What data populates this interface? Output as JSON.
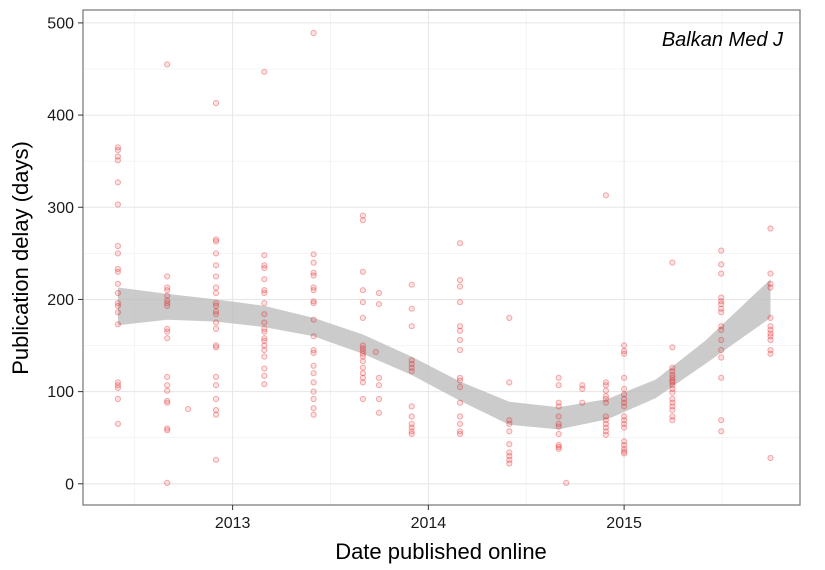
{
  "chart_data": {
    "type": "scatter",
    "title": "",
    "panel_label": "Balkan Med J",
    "xlabel": "Date published online",
    "ylabel": "Publication delay (days)",
    "xlim": [
      "2012-03-28",
      "2015-11-25"
    ],
    "ylim": [
      -23,
      514
    ],
    "x_ticks": [
      {
        "date": "2013-01-01",
        "label": "2013"
      },
      {
        "date": "2014-01-01",
        "label": "2014"
      },
      {
        "date": "2015-01-01",
        "label": "2015"
      }
    ],
    "y_ticks": [
      {
        "value": 0,
        "label": "0"
      },
      {
        "value": 100,
        "label": "100"
      },
      {
        "value": 200,
        "label": "200"
      },
      {
        "value": 300,
        "label": "300"
      },
      {
        "value": 400,
        "label": "400"
      },
      {
        "value": 500,
        "label": "500"
      }
    ],
    "grid": true,
    "point_color": "#E41A1C",
    "band_color": "#BEBEBE",
    "points": [
      {
        "x": "2012-06-01",
        "y": 365
      },
      {
        "x": "2012-06-01",
        "y": 362
      },
      {
        "x": "2012-06-01",
        "y": 355
      },
      {
        "x": "2012-06-01",
        "y": 351
      },
      {
        "x": "2012-06-01",
        "y": 327
      },
      {
        "x": "2012-06-01",
        "y": 303
      },
      {
        "x": "2012-06-01",
        "y": 258
      },
      {
        "x": "2012-06-01",
        "y": 250
      },
      {
        "x": "2012-06-01",
        "y": 233
      },
      {
        "x": "2012-06-01",
        "y": 230
      },
      {
        "x": "2012-06-01",
        "y": 217
      },
      {
        "x": "2012-06-01",
        "y": 207
      },
      {
        "x": "2012-06-01",
        "y": 196
      },
      {
        "x": "2012-06-01",
        "y": 193
      },
      {
        "x": "2012-06-01",
        "y": 186
      },
      {
        "x": "2012-06-01",
        "y": 173
      },
      {
        "x": "2012-06-01",
        "y": 110
      },
      {
        "x": "2012-06-01",
        "y": 107
      },
      {
        "x": "2012-06-01",
        "y": 104
      },
      {
        "x": "2012-06-01",
        "y": 92
      },
      {
        "x": "2012-06-01",
        "y": 65
      },
      {
        "x": "2012-09-01",
        "y": 455
      },
      {
        "x": "2012-09-01",
        "y": 225
      },
      {
        "x": "2012-09-01",
        "y": 213
      },
      {
        "x": "2012-09-01",
        "y": 210
      },
      {
        "x": "2012-09-01",
        "y": 204
      },
      {
        "x": "2012-09-01",
        "y": 199
      },
      {
        "x": "2012-09-01",
        "y": 196
      },
      {
        "x": "2012-09-01",
        "y": 193
      },
      {
        "x": "2012-09-01",
        "y": 168
      },
      {
        "x": "2012-09-01",
        "y": 165
      },
      {
        "x": "2012-09-01",
        "y": 158
      },
      {
        "x": "2012-09-01",
        "y": 116
      },
      {
        "x": "2012-09-01",
        "y": 107
      },
      {
        "x": "2012-09-01",
        "y": 101
      },
      {
        "x": "2012-09-01",
        "y": 90
      },
      {
        "x": "2012-09-01",
        "y": 88
      },
      {
        "x": "2012-09-01",
        "y": 60
      },
      {
        "x": "2012-09-01",
        "y": 58
      },
      {
        "x": "2012-09-01",
        "y": 1
      },
      {
        "x": "2012-10-10",
        "y": 81
      },
      {
        "x": "2012-12-01",
        "y": 413
      },
      {
        "x": "2012-12-01",
        "y": 265
      },
      {
        "x": "2012-12-01",
        "y": 263
      },
      {
        "x": "2012-12-01",
        "y": 250
      },
      {
        "x": "2012-12-01",
        "y": 237
      },
      {
        "x": "2012-12-01",
        "y": 225
      },
      {
        "x": "2012-12-01",
        "y": 213
      },
      {
        "x": "2012-12-01",
        "y": 207
      },
      {
        "x": "2012-12-01",
        "y": 196
      },
      {
        "x": "2012-12-01",
        "y": 193
      },
      {
        "x": "2012-12-01",
        "y": 187
      },
      {
        "x": "2012-12-01",
        "y": 184
      },
      {
        "x": "2012-12-01",
        "y": 175
      },
      {
        "x": "2012-12-01",
        "y": 168
      },
      {
        "x": "2012-12-01",
        "y": 150
      },
      {
        "x": "2012-12-01",
        "y": 148
      },
      {
        "x": "2012-12-01",
        "y": 116
      },
      {
        "x": "2012-12-01",
        "y": 107
      },
      {
        "x": "2012-12-01",
        "y": 92
      },
      {
        "x": "2012-12-01",
        "y": 80
      },
      {
        "x": "2012-12-01",
        "y": 75
      },
      {
        "x": "2012-12-01",
        "y": 26
      },
      {
        "x": "2013-03-01",
        "y": 447
      },
      {
        "x": "2013-03-01",
        "y": 248
      },
      {
        "x": "2013-03-01",
        "y": 237
      },
      {
        "x": "2013-03-01",
        "y": 234
      },
      {
        "x": "2013-03-01",
        "y": 222
      },
      {
        "x": "2013-03-01",
        "y": 210
      },
      {
        "x": "2013-03-01",
        "y": 207
      },
      {
        "x": "2013-03-01",
        "y": 196
      },
      {
        "x": "2013-03-01",
        "y": 184
      },
      {
        "x": "2013-03-01",
        "y": 175
      },
      {
        "x": "2013-03-01",
        "y": 168
      },
      {
        "x": "2013-03-01",
        "y": 165
      },
      {
        "x": "2013-03-01",
        "y": 158
      },
      {
        "x": "2013-03-01",
        "y": 155
      },
      {
        "x": "2013-03-01",
        "y": 150
      },
      {
        "x": "2013-03-01",
        "y": 145
      },
      {
        "x": "2013-03-01",
        "y": 138
      },
      {
        "x": "2013-03-01",
        "y": 125
      },
      {
        "x": "2013-03-01",
        "y": 117
      },
      {
        "x": "2013-03-01",
        "y": 108
      },
      {
        "x": "2013-06-01",
        "y": 489
      },
      {
        "x": "2013-06-01",
        "y": 249
      },
      {
        "x": "2013-06-01",
        "y": 240
      },
      {
        "x": "2013-06-01",
        "y": 229
      },
      {
        "x": "2013-06-01",
        "y": 226
      },
      {
        "x": "2013-06-01",
        "y": 213
      },
      {
        "x": "2013-06-01",
        "y": 210
      },
      {
        "x": "2013-06-01",
        "y": 198
      },
      {
        "x": "2013-06-01",
        "y": 196
      },
      {
        "x": "2013-06-01",
        "y": 178
      },
      {
        "x": "2013-06-01",
        "y": 160
      },
      {
        "x": "2013-06-01",
        "y": 145
      },
      {
        "x": "2013-06-01",
        "y": 142
      },
      {
        "x": "2013-06-01",
        "y": 128
      },
      {
        "x": "2013-06-01",
        "y": 120
      },
      {
        "x": "2013-06-01",
        "y": 110
      },
      {
        "x": "2013-06-01",
        "y": 100
      },
      {
        "x": "2013-06-01",
        "y": 92
      },
      {
        "x": "2013-06-01",
        "y": 82
      },
      {
        "x": "2013-06-01",
        "y": 75
      },
      {
        "x": "2013-09-01",
        "y": 291
      },
      {
        "x": "2013-09-01",
        "y": 286
      },
      {
        "x": "2013-09-01",
        "y": 230
      },
      {
        "x": "2013-09-01",
        "y": 210
      },
      {
        "x": "2013-09-01",
        "y": 197
      },
      {
        "x": "2013-09-01",
        "y": 180
      },
      {
        "x": "2013-09-01",
        "y": 150
      },
      {
        "x": "2013-09-01",
        "y": 147
      },
      {
        "x": "2013-09-01",
        "y": 144
      },
      {
        "x": "2013-09-01",
        "y": 141
      },
      {
        "x": "2013-09-01",
        "y": 138
      },
      {
        "x": "2013-09-01",
        "y": 133
      },
      {
        "x": "2013-09-01",
        "y": 126
      },
      {
        "x": "2013-09-01",
        "y": 120
      },
      {
        "x": "2013-09-01",
        "y": 115
      },
      {
        "x": "2013-09-01",
        "y": 110
      },
      {
        "x": "2013-09-01",
        "y": 92
      },
      {
        "x": "2013-09-25",
        "y": 143
      },
      {
        "x": "2013-10-01",
        "y": 207
      },
      {
        "x": "2013-10-01",
        "y": 195
      },
      {
        "x": "2013-10-01",
        "y": 115
      },
      {
        "x": "2013-10-01",
        "y": 107
      },
      {
        "x": "2013-10-01",
        "y": 92
      },
      {
        "x": "2013-10-01",
        "y": 77
      },
      {
        "x": "2013-12-01",
        "y": 216
      },
      {
        "x": "2013-12-01",
        "y": 190
      },
      {
        "x": "2013-12-01",
        "y": 171
      },
      {
        "x": "2013-12-01",
        "y": 134
      },
      {
        "x": "2013-12-01",
        "y": 130
      },
      {
        "x": "2013-12-01",
        "y": 126
      },
      {
        "x": "2013-12-01",
        "y": 122
      },
      {
        "x": "2013-12-01",
        "y": 84
      },
      {
        "x": "2013-12-01",
        "y": 73
      },
      {
        "x": "2013-12-01",
        "y": 65
      },
      {
        "x": "2013-12-01",
        "y": 61
      },
      {
        "x": "2013-12-01",
        "y": 57
      },
      {
        "x": "2013-12-01",
        "y": 54
      },
      {
        "x": "2014-03-01",
        "y": 261
      },
      {
        "x": "2014-03-01",
        "y": 221
      },
      {
        "x": "2014-03-01",
        "y": 214
      },
      {
        "x": "2014-03-01",
        "y": 197
      },
      {
        "x": "2014-03-01",
        "y": 171
      },
      {
        "x": "2014-03-01",
        "y": 166
      },
      {
        "x": "2014-03-01",
        "y": 156
      },
      {
        "x": "2014-03-01",
        "y": 145
      },
      {
        "x": "2014-03-01",
        "y": 115
      },
      {
        "x": "2014-03-01",
        "y": 112
      },
      {
        "x": "2014-03-01",
        "y": 105
      },
      {
        "x": "2014-03-01",
        "y": 88
      },
      {
        "x": "2014-03-01",
        "y": 73
      },
      {
        "x": "2014-03-01",
        "y": 65
      },
      {
        "x": "2014-03-01",
        "y": 57
      },
      {
        "x": "2014-03-01",
        "y": 54
      },
      {
        "x": "2014-06-01",
        "y": 180
      },
      {
        "x": "2014-06-01",
        "y": 110
      },
      {
        "x": "2014-06-01",
        "y": 69
      },
      {
        "x": "2014-06-01",
        "y": 65
      },
      {
        "x": "2014-06-01",
        "y": 57
      },
      {
        "x": "2014-06-01",
        "y": 43
      },
      {
        "x": "2014-06-01",
        "y": 34
      },
      {
        "x": "2014-06-01",
        "y": 30
      },
      {
        "x": "2014-06-01",
        "y": 26
      },
      {
        "x": "2014-06-01",
        "y": 22
      },
      {
        "x": "2014-09-01",
        "y": 115
      },
      {
        "x": "2014-09-01",
        "y": 107
      },
      {
        "x": "2014-09-01",
        "y": 88
      },
      {
        "x": "2014-09-01",
        "y": 84
      },
      {
        "x": "2014-09-01",
        "y": 73
      },
      {
        "x": "2014-09-01",
        "y": 65
      },
      {
        "x": "2014-09-01",
        "y": 62
      },
      {
        "x": "2014-09-01",
        "y": 54
      },
      {
        "x": "2014-09-01",
        "y": 42
      },
      {
        "x": "2014-09-01",
        "y": 40
      },
      {
        "x": "2014-09-01",
        "y": 38
      },
      {
        "x": "2014-09-15",
        "y": 1
      },
      {
        "x": "2014-10-15",
        "y": 107
      },
      {
        "x": "2014-10-15",
        "y": 103
      },
      {
        "x": "2014-10-15",
        "y": 88
      },
      {
        "x": "2014-11-28",
        "y": 313
      },
      {
        "x": "2014-11-28",
        "y": 110
      },
      {
        "x": "2014-11-28",
        "y": 107
      },
      {
        "x": "2014-11-28",
        "y": 101
      },
      {
        "x": "2014-11-28",
        "y": 95
      },
      {
        "x": "2014-11-28",
        "y": 92
      },
      {
        "x": "2014-11-28",
        "y": 88
      },
      {
        "x": "2014-11-28",
        "y": 73
      },
      {
        "x": "2014-11-28",
        "y": 69
      },
      {
        "x": "2014-11-28",
        "y": 65
      },
      {
        "x": "2014-11-28",
        "y": 61
      },
      {
        "x": "2014-11-28",
        "y": 57
      },
      {
        "x": "2014-11-28",
        "y": 53
      },
      {
        "x": "2015-01-01",
        "y": 150
      },
      {
        "x": "2015-01-01",
        "y": 144
      },
      {
        "x": "2015-01-01",
        "y": 141
      },
      {
        "x": "2015-01-01",
        "y": 115
      },
      {
        "x": "2015-01-01",
        "y": 103
      },
      {
        "x": "2015-01-01",
        "y": 97
      },
      {
        "x": "2015-01-01",
        "y": 92
      },
      {
        "x": "2015-01-01",
        "y": 88
      },
      {
        "x": "2015-01-01",
        "y": 84
      },
      {
        "x": "2015-01-01",
        "y": 73
      },
      {
        "x": "2015-01-01",
        "y": 69
      },
      {
        "x": "2015-01-01",
        "y": 65
      },
      {
        "x": "2015-01-01",
        "y": 61
      },
      {
        "x": "2015-01-01",
        "y": 46
      },
      {
        "x": "2015-01-01",
        "y": 42
      },
      {
        "x": "2015-01-01",
        "y": 38
      },
      {
        "x": "2015-01-01",
        "y": 35
      },
      {
        "x": "2015-01-01",
        "y": 33
      },
      {
        "x": "2015-04-01",
        "y": 240
      },
      {
        "x": "2015-04-01",
        "y": 148
      },
      {
        "x": "2015-04-01",
        "y": 126
      },
      {
        "x": "2015-04-01",
        "y": 122
      },
      {
        "x": "2015-04-01",
        "y": 118
      },
      {
        "x": "2015-04-01",
        "y": 115
      },
      {
        "x": "2015-04-01",
        "y": 112
      },
      {
        "x": "2015-04-01",
        "y": 110
      },
      {
        "x": "2015-04-01",
        "y": 107
      },
      {
        "x": "2015-04-01",
        "y": 103
      },
      {
        "x": "2015-04-01",
        "y": 99
      },
      {
        "x": "2015-04-01",
        "y": 92
      },
      {
        "x": "2015-04-01",
        "y": 88
      },
      {
        "x": "2015-04-01",
        "y": 84
      },
      {
        "x": "2015-04-01",
        "y": 80
      },
      {
        "x": "2015-04-01",
        "y": 73
      },
      {
        "x": "2015-04-01",
        "y": 69
      },
      {
        "x": "2015-07-01",
        "y": 253
      },
      {
        "x": "2015-07-01",
        "y": 238
      },
      {
        "x": "2015-07-01",
        "y": 228
      },
      {
        "x": "2015-07-01",
        "y": 202
      },
      {
        "x": "2015-07-01",
        "y": 198
      },
      {
        "x": "2015-07-01",
        "y": 195
      },
      {
        "x": "2015-07-01",
        "y": 190
      },
      {
        "x": "2015-07-01",
        "y": 186
      },
      {
        "x": "2015-07-01",
        "y": 171
      },
      {
        "x": "2015-07-01",
        "y": 167
      },
      {
        "x": "2015-07-01",
        "y": 156
      },
      {
        "x": "2015-07-01",
        "y": 145
      },
      {
        "x": "2015-07-01",
        "y": 137
      },
      {
        "x": "2015-07-01",
        "y": 115
      },
      {
        "x": "2015-07-01",
        "y": 69
      },
      {
        "x": "2015-07-01",
        "y": 57
      },
      {
        "x": "2015-10-01",
        "y": 277
      },
      {
        "x": "2015-10-01",
        "y": 228
      },
      {
        "x": "2015-10-01",
        "y": 217
      },
      {
        "x": "2015-10-01",
        "y": 213
      },
      {
        "x": "2015-10-01",
        "y": 180
      },
      {
        "x": "2015-10-01",
        "y": 171
      },
      {
        "x": "2015-10-01",
        "y": 167
      },
      {
        "x": "2015-10-01",
        "y": 163
      },
      {
        "x": "2015-10-01",
        "y": 160
      },
      {
        "x": "2015-10-01",
        "y": 156
      },
      {
        "x": "2015-10-01",
        "y": 145
      },
      {
        "x": "2015-10-01",
        "y": 141
      },
      {
        "x": "2015-10-01",
        "y": 28
      }
    ],
    "smooth_band": [
      {
        "x": "2012-06-01",
        "lo": 172,
        "hi": 213
      },
      {
        "x": "2012-09-01",
        "lo": 178,
        "hi": 206
      },
      {
        "x": "2012-12-01",
        "lo": 176,
        "hi": 200
      },
      {
        "x": "2013-03-01",
        "lo": 170,
        "hi": 193
      },
      {
        "x": "2013-06-01",
        "lo": 160,
        "hi": 180
      },
      {
        "x": "2013-09-01",
        "lo": 141,
        "hi": 162
      },
      {
        "x": "2013-12-01",
        "lo": 118,
        "hi": 138
      },
      {
        "x": "2014-03-01",
        "lo": 90,
        "hi": 111
      },
      {
        "x": "2014-06-01",
        "lo": 64,
        "hi": 89
      },
      {
        "x": "2014-09-01",
        "lo": 59,
        "hi": 83
      },
      {
        "x": "2014-12-01",
        "lo": 70,
        "hi": 92
      },
      {
        "x": "2015-03-01",
        "lo": 93,
        "hi": 113
      },
      {
        "x": "2015-06-01",
        "lo": 130,
        "hi": 155
      },
      {
        "x": "2015-10-01",
        "lo": 180,
        "hi": 222
      }
    ]
  }
}
